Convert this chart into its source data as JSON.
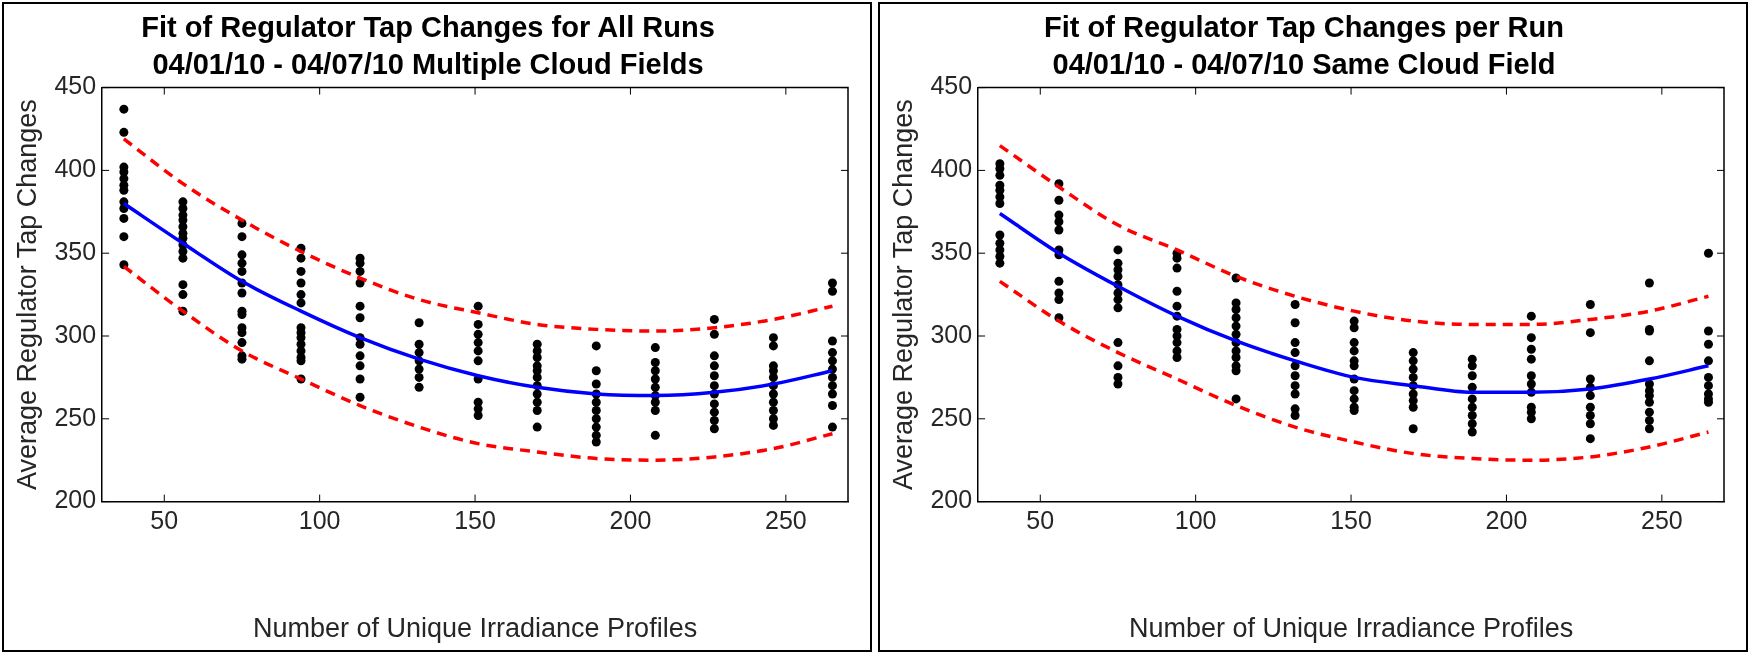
{
  "chart_data": [
    {
      "type": "scatter",
      "title": "Fit of Regulator Tap Changes for All Runs",
      "subtitle": "04/01/10 - 04/07/10 Multiple Cloud Fields",
      "xlabel": "Number of Unique Irradiance Profiles",
      "ylabel": "Average Regulator Tap Changes",
      "xlim": [
        30,
        270
      ],
      "xticks": [
        50,
        100,
        150,
        200,
        250
      ],
      "ylim": [
        200,
        450
      ],
      "yticks": [
        200,
        250,
        300,
        350,
        400,
        450
      ],
      "grid": false,
      "legend": false,
      "series": [
        {
          "marker": "circle",
          "color": "#000000",
          "x": [
            37,
            37,
            37,
            37,
            37,
            37,
            37,
            37,
            37,
            37,
            37,
            37,
            56,
            56,
            56,
            56,
            56,
            56,
            56,
            56,
            56,
            56,
            56,
            56,
            56,
            75,
            75,
            75,
            75,
            75,
            75,
            75,
            75,
            75,
            75,
            75,
            75,
            75,
            75,
            94,
            94,
            94,
            94,
            94,
            94,
            94,
            94,
            94,
            94,
            94,
            94,
            94,
            94,
            113,
            113,
            113,
            113,
            113,
            113,
            113,
            113,
            113,
            113,
            113,
            113,
            132,
            132,
            132,
            132,
            132,
            132,
            132,
            151,
            151,
            151,
            151,
            151,
            151,
            151,
            151,
            151,
            151,
            170,
            170,
            170,
            170,
            170,
            170,
            170,
            170,
            170,
            170,
            170,
            189,
            189,
            189,
            189,
            189,
            189,
            189,
            189,
            189,
            189,
            208,
            208,
            208,
            208,
            208,
            208,
            208,
            208,
            208,
            227,
            227,
            227,
            227,
            227,
            227,
            227,
            227,
            227,
            227,
            227,
            246,
            246,
            246,
            246,
            246,
            246,
            246,
            246,
            246,
            246,
            246,
            265,
            265,
            265,
            265,
            265,
            265,
            265,
            265,
            265,
            265,
            265
          ],
          "values": [
            437,
            423,
            402,
            399,
            395,
            391,
            388,
            381,
            377,
            371,
            360,
            343,
            381,
            377,
            373,
            370,
            366,
            362,
            359,
            355,
            351,
            347,
            331,
            325,
            315,
            368,
            360,
            349,
            344,
            339,
            332,
            326,
            315,
            313,
            305,
            302,
            296,
            288,
            286,
            353,
            347,
            339,
            332,
            325,
            320,
            305,
            302,
            299,
            295,
            291,
            287,
            285,
            274,
            347,
            344,
            339,
            332,
            318,
            311,
            299,
            295,
            288,
            282,
            274,
            263,
            308,
            295,
            290,
            285,
            280,
            275,
            269,
            318,
            307,
            301,
            296,
            291,
            285,
            274,
            260,
            256,
            252,
            295,
            291,
            287,
            282,
            279,
            275,
            270,
            265,
            260,
            255,
            245,
            294,
            279,
            271,
            265,
            260,
            255,
            250,
            245,
            240,
            236,
            293,
            284,
            279,
            274,
            269,
            264,
            260,
            255,
            240,
            310,
            301,
            288,
            282,
            276,
            270,
            265,
            259,
            254,
            249,
            244,
            299,
            294,
            282,
            279,
            275,
            270,
            265,
            260,
            255,
            250,
            246,
            332,
            327,
            297,
            290,
            285,
            280,
            275,
            270,
            265,
            258,
            245
          ]
        },
        {
          "type": "line",
          "marker": "none",
          "line_style": "solid",
          "color": "#0000ff",
          "x": [
            37,
            56,
            75,
            94,
            113,
            132,
            151,
            170,
            189,
            208,
            227,
            246,
            265
          ],
          "values": [
            380,
            356,
            333,
            315,
            299,
            286,
            276,
            269,
            265,
            264,
            266,
            271,
            279
          ]
        },
        {
          "type": "line",
          "marker": "none",
          "line_style": "dashed",
          "color": "#ff0000",
          "x": [
            37,
            56,
            75,
            94,
            113,
            132,
            151,
            170,
            189,
            208,
            227,
            246,
            265
          ],
          "values": [
            419,
            392,
            370,
            351,
            335,
            322,
            314,
            307,
            304,
            303,
            305,
            310,
            318
          ]
        },
        {
          "type": "line",
          "marker": "none",
          "line_style": "dashed",
          "color": "#ff0000",
          "x": [
            37,
            56,
            75,
            94,
            113,
            132,
            151,
            170,
            189,
            208,
            227,
            246,
            265
          ],
          "values": [
            342,
            315,
            291,
            274,
            258,
            245,
            235,
            230,
            226,
            225,
            227,
            232,
            241
          ]
        }
      ]
    },
    {
      "type": "scatter",
      "title": "Fit of Regulator Tap Changes per Run",
      "subtitle": "04/01/10 - 04/07/10 Same Cloud Field",
      "xlabel": "Number of Unique Irradiance Profiles",
      "ylabel": "Average Regulator Tap Changes",
      "xlim": [
        30,
        270
      ],
      "xticks": [
        50,
        100,
        150,
        200,
        250
      ],
      "ylim": [
        200,
        450
      ],
      "yticks": [
        200,
        250,
        300,
        350,
        400,
        450
      ],
      "grid": false,
      "legend": false,
      "series": [
        {
          "marker": "circle",
          "color": "#000000",
          "x": [
            37,
            37,
            37,
            37,
            37,
            37,
            37,
            37,
            37,
            37,
            37,
            37,
            56,
            56,
            56,
            56,
            56,
            56,
            56,
            56,
            56,
            56,
            56,
            75,
            75,
            75,
            75,
            75,
            75,
            75,
            75,
            75,
            75,
            75,
            75,
            94,
            94,
            94,
            94,
            94,
            94,
            94,
            94,
            94,
            94,
            94,
            113,
            113,
            113,
            113,
            113,
            113,
            113,
            113,
            113,
            113,
            113,
            113,
            132,
            132,
            132,
            132,
            132,
            132,
            132,
            132,
            132,
            132,
            151,
            151,
            151,
            151,
            151,
            151,
            151,
            151,
            151,
            151,
            151,
            170,
            170,
            170,
            170,
            170,
            170,
            170,
            170,
            170,
            189,
            189,
            189,
            189,
            189,
            189,
            189,
            189,
            189,
            208,
            208,
            208,
            208,
            208,
            208,
            208,
            208,
            208,
            208,
            227,
            227,
            227,
            227,
            227,
            227,
            227,
            227,
            227,
            246,
            246,
            246,
            246,
            246,
            246,
            246,
            246,
            246,
            246,
            246,
            265,
            265,
            265,
            265,
            265,
            265,
            265,
            265,
            265
          ],
          "values": [
            404,
            401,
            397,
            391,
            388,
            384,
            380,
            361,
            356,
            352,
            348,
            344,
            392,
            382,
            373,
            369,
            364,
            352,
            349,
            333,
            326,
            322,
            311,
            352,
            344,
            340,
            336,
            331,
            326,
            322,
            317,
            296,
            282,
            275,
            271,
            350,
            347,
            341,
            327,
            318,
            312,
            304,
            300,
            296,
            291,
            287,
            335,
            320,
            316,
            311,
            306,
            301,
            296,
            291,
            287,
            282,
            279,
            262,
            319,
            308,
            296,
            290,
            282,
            276,
            270,
            265,
            256,
            252,
            309,
            305,
            296,
            291,
            285,
            282,
            274,
            267,
            262,
            257,
            255,
            290,
            285,
            280,
            275,
            270,
            265,
            261,
            257,
            244,
            286,
            282,
            276,
            269,
            262,
            257,
            252,
            247,
            242,
            312,
            299,
            292,
            286,
            276,
            271,
            266,
            257,
            254,
            250,
            319,
            302,
            274,
            269,
            264,
            257,
            252,
            247,
            238,
            332,
            304,
            303,
            285,
            271,
            267,
            264,
            260,
            254,
            249,
            244,
            350,
            303,
            295,
            285,
            275,
            270,
            265,
            262,
            260
          ]
        },
        {
          "type": "line",
          "marker": "none",
          "line_style": "solid",
          "color": "#0000ff",
          "x": [
            37,
            56,
            75,
            94,
            113,
            132,
            151,
            170,
            189,
            208,
            227,
            246,
            265
          ],
          "values": [
            374,
            350,
            330,
            312,
            297,
            285,
            275,
            270,
            266,
            266,
            268,
            274,
            282
          ]
        },
        {
          "type": "line",
          "marker": "none",
          "line_style": "dashed",
          "color": "#ff0000",
          "x": [
            37,
            56,
            75,
            94,
            113,
            132,
            151,
            170,
            189,
            208,
            227,
            246,
            265
          ],
          "values": [
            415,
            390,
            367,
            352,
            336,
            324,
            315,
            309,
            307,
            307,
            310,
            315,
            324
          ]
        },
        {
          "type": "line",
          "marker": "none",
          "line_style": "dashed",
          "color": "#ff0000",
          "x": [
            37,
            56,
            75,
            94,
            113,
            132,
            151,
            170,
            189,
            208,
            227,
            246,
            265
          ],
          "values": [
            333,
            309,
            290,
            274,
            258,
            245,
            236,
            229,
            226,
            225,
            227,
            233,
            242
          ]
        }
      ]
    }
  ]
}
